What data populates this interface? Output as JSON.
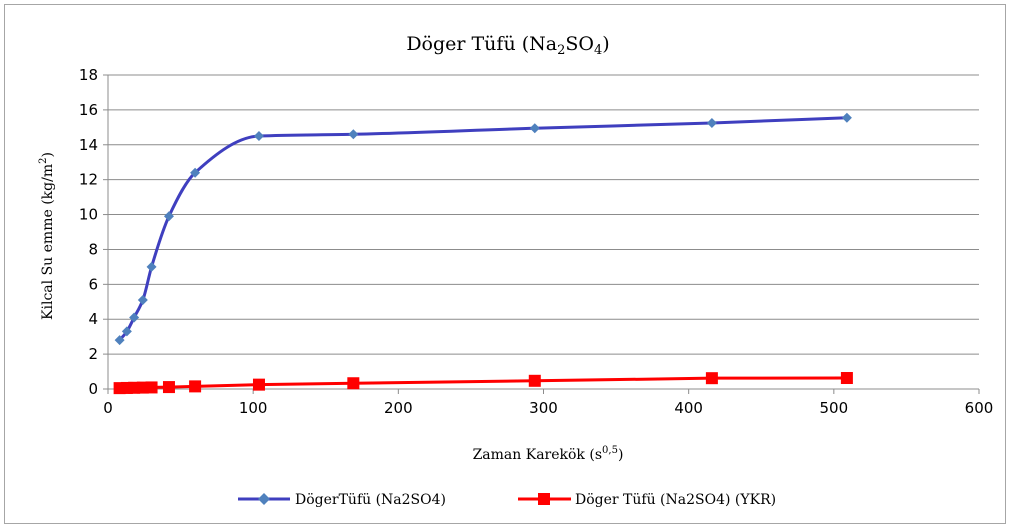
{
  "chart_data": {
    "type": "line",
    "title": "Döger Tüfü (Na2SO4)",
    "title_main": "Döger Tüfü (Na",
    "title_sub1": "2",
    "title_mid": "SO",
    "title_sub2": "4",
    "title_end": ")",
    "xlabel": "Zaman Karekök (s0,5)",
    "xlabel_main": "Zaman Karekök (s",
    "xlabel_sup": "0,5",
    "xlabel_end": ")",
    "ylabel": "Kilcal Su emme (kg/m2)",
    "ylabel_main": "Kilcal Su emme (kg/m",
    "ylabel_sup": "2",
    "ylabel_end": ")",
    "xlim": [
      0,
      600
    ],
    "ylim": [
      0,
      18
    ],
    "xticks": [
      0,
      100,
      200,
      300,
      400,
      500,
      600
    ],
    "yticks": [
      0,
      2,
      4,
      6,
      8,
      10,
      12,
      14,
      16,
      18
    ],
    "grid": "horizontal",
    "legend_position": "bottom",
    "series": [
      {
        "name": "DögerTüfü (Na2SO4)",
        "color": "#3f3fbf",
        "marker_color": "#4f81bd",
        "marker": "diamond",
        "smooth": true,
        "x": [
          8,
          13,
          18,
          24,
          30,
          42,
          60,
          104,
          169,
          294,
          416,
          509
        ],
        "y": [
          2.8,
          3.3,
          4.1,
          5.1,
          7.0,
          9.9,
          12.4,
          14.5,
          14.6,
          14.95,
          15.25,
          15.55
        ]
      },
      {
        "name": "Döger Tüfü (Na2SO4) (YKR)",
        "color": "#ff0000",
        "marker_color": "#ff0000",
        "marker": "square",
        "smooth": false,
        "x": [
          8,
          13,
          18,
          24,
          30,
          42,
          60,
          104,
          169,
          294,
          416,
          509
        ],
        "y": [
          0.05,
          0.06,
          0.07,
          0.08,
          0.09,
          0.11,
          0.15,
          0.25,
          0.33,
          0.47,
          0.62,
          0.63
        ]
      }
    ]
  }
}
